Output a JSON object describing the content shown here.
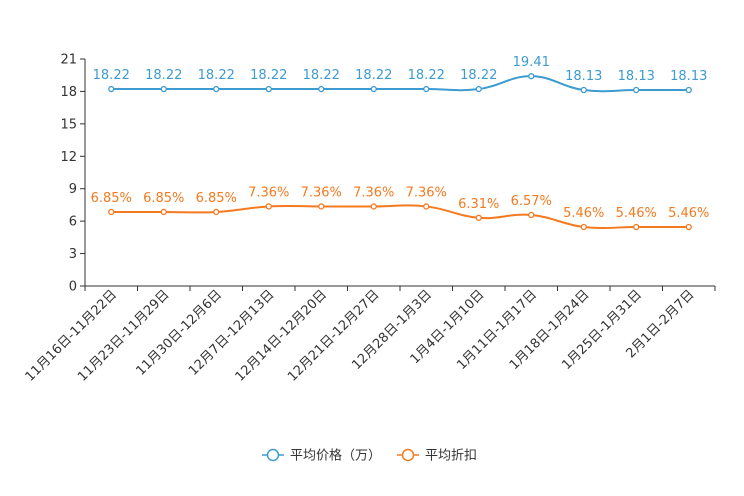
{
  "chart_data": {
    "type": "line",
    "categories": [
      "11月16日-11月22日",
      "11月23日-11月29日",
      "11月30日-12月6日",
      "12月7日-12月13日",
      "12月14日-12月20日",
      "12月21日-12月27日",
      "12月28日-1月3日",
      "1月4日-1月10日",
      "1月11日-1月17日",
      "1月18日-1月24日",
      "1月25日-1月31日",
      "2月1日-2月7日"
    ],
    "ylim": [
      0,
      21
    ],
    "yticks": [
      0,
      3,
      6,
      9,
      12,
      15,
      18,
      21
    ],
    "series": [
      {
        "name": "平均价格（万）",
        "color": "#3d9bd0",
        "values": [
          18.22,
          18.22,
          18.22,
          18.22,
          18.22,
          18.22,
          18.22,
          18.22,
          19.41,
          18.13,
          18.13,
          18.13
        ],
        "labels": [
          "18.22",
          "18.22",
          "18.22",
          "18.22",
          "18.22",
          "18.22",
          "18.22",
          "18.22",
          "19.41",
          "18.13",
          "18.13",
          "18.13"
        ]
      },
      {
        "name": "平均折扣",
        "color": "#f47a20",
        "values": [
          6.85,
          6.85,
          6.85,
          7.36,
          7.36,
          7.36,
          7.36,
          6.31,
          6.57,
          5.46,
          5.46,
          5.46
        ],
        "labels": [
          "6.85%",
          "6.85%",
          "6.85%",
          "7.36%",
          "7.36%",
          "7.36%",
          "7.36%",
          "6.31%",
          "6.57%",
          "5.46%",
          "5.46%",
          "5.46%"
        ]
      }
    ],
    "legend_position": "bottom-center",
    "grid": false
  }
}
